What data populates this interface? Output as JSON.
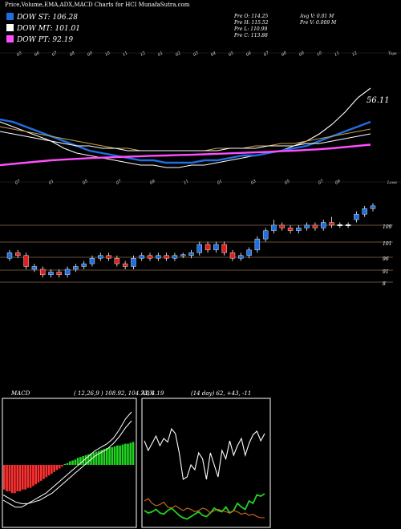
{
  "header": {
    "title": "Price,Volume,EMA,ADX,MACD Charts for HCI MunafaSutra.com",
    "stats": {
      "col1": [
        "Pre O: 114.25",
        "Pre H: 115.52",
        "Pre L: 110.99",
        "Pre C: 113.88"
      ],
      "col2": [
        "Avg V: 0.01 M",
        "Pre V: 0.009 M"
      ]
    }
  },
  "legend": [
    {
      "label": "DOW ST: 106.28",
      "color": "#1f6fe0"
    },
    {
      "label": "DOW MT: 101.01",
      "color": "#ffffff"
    },
    {
      "label": "DOW PT: 92.19",
      "color": "#ff4dff"
    }
  ],
  "chart_data": [
    {
      "type": "line",
      "panel": "ema",
      "value_label": "56.11",
      "top_label": "Tops",
      "bottom_label": "Lows",
      "top_ticks": [
        "05",
        "06",
        "07",
        "08",
        "09",
        "10",
        "11",
        "12",
        "01",
        "02",
        "03",
        "04",
        "05",
        "06",
        "07",
        "08",
        "09",
        "10",
        "11",
        "12"
      ],
      "bottom_ticks": [
        "07",
        "",
        "01",
        "",
        "05",
        "",
        "07",
        "",
        "09",
        "",
        "11",
        "",
        "01",
        "",
        "03",
        "",
        "05",
        "",
        "07",
        "09"
      ],
      "series": [
        {
          "color": "#ffffff",
          "values": [
            106,
            104,
            102,
            100,
            98,
            95,
            93,
            92,
            91,
            90,
            89,
            88,
            88,
            87,
            87,
            88,
            88,
            89,
            90,
            91,
            92,
            93,
            94,
            96,
            98,
            101,
            105,
            110,
            116,
            120
          ]
        },
        {
          "color": "#1f6fe0",
          "values": [
            107,
            106,
            104,
            102,
            100,
            98,
            96,
            94,
            93,
            92,
            91,
            90,
            90,
            89,
            89,
            89,
            90,
            90,
            91,
            92,
            92,
            93,
            94,
            95,
            96,
            98,
            100,
            102,
            104,
            106
          ]
        },
        {
          "color": "#c8a050",
          "values": [
            104,
            103,
            102,
            101,
            100,
            99,
            98,
            97,
            96,
            95,
            95,
            94,
            94,
            94,
            94,
            94,
            94,
            95,
            95,
            95,
            96,
            96,
            97,
            97,
            98,
            99,
            100,
            101,
            102,
            103
          ]
        },
        {
          "color": "#ffffff",
          "values": [
            102,
            101,
            100,
            99,
            98,
            97,
            96,
            96,
            95,
            95,
            94,
            94,
            94,
            94,
            94,
            94,
            94,
            94,
            95,
            95,
            95,
            96,
            96,
            96,
            97,
            97,
            98,
            99,
            100,
            101
          ]
        },
        {
          "color": "#ff4dff",
          "values": [
            88,
            88.5,
            89,
            89.5,
            90,
            90.3,
            90.6,
            90.9,
            91.1,
            91.3,
            91.5,
            91.7,
            91.9,
            92,
            92.2,
            92.3,
            92.5,
            92.7,
            92.9,
            93.1,
            93.3,
            93.5,
            93.8,
            94,
            94.3,
            94.6,
            95,
            95.5,
            96,
            96.5
          ]
        }
      ]
    },
    {
      "type": "candlestick",
      "panel": "price",
      "levels": [
        "109",
        "101",
        "96",
        "91",
        "8"
      ],
      "candles": [
        {
          "o": 96,
          "c": 98,
          "h": 99,
          "l": 95,
          "color": "blue"
        },
        {
          "o": 98,
          "c": 97,
          "h": 99,
          "l": 96,
          "color": "red"
        },
        {
          "o": 97,
          "c": 93,
          "h": 98,
          "l": 92,
          "color": "red"
        },
        {
          "o": 93,
          "c": 92,
          "h": 94,
          "l": 91,
          "color": "blue"
        },
        {
          "o": 92,
          "c": 90,
          "h": 93,
          "l": 89,
          "color": "red"
        },
        {
          "o": 90,
          "c": 91,
          "h": 92,
          "l": 89,
          "color": "blue"
        },
        {
          "o": 91,
          "c": 90,
          "h": 92,
          "l": 89,
          "color": "red"
        },
        {
          "o": 90,
          "c": 92,
          "h": 93,
          "l": 89,
          "color": "blue"
        },
        {
          "o": 92,
          "c": 93,
          "h": 94,
          "l": 91,
          "color": "blue"
        },
        {
          "o": 93,
          "c": 94,
          "h": 95,
          "l": 92,
          "color": "blue"
        },
        {
          "o": 94,
          "c": 96,
          "h": 97,
          "l": 93,
          "color": "blue"
        },
        {
          "o": 96,
          "c": 97,
          "h": 98,
          "l": 95,
          "color": "blue"
        },
        {
          "o": 97,
          "c": 96,
          "h": 98,
          "l": 95,
          "color": "red"
        },
        {
          "o": 96,
          "c": 94,
          "h": 97,
          "l": 93,
          "color": "red"
        },
        {
          "o": 94,
          "c": 93,
          "h": 95,
          "l": 92,
          "color": "red"
        },
        {
          "o": 93,
          "c": 96,
          "h": 97,
          "l": 92,
          "color": "blue"
        },
        {
          "o": 96,
          "c": 97,
          "h": 98,
          "l": 95,
          "color": "blue"
        },
        {
          "o": 97,
          "c": 96,
          "h": 98,
          "l": 95,
          "color": "red"
        },
        {
          "o": 96,
          "c": 97,
          "h": 98,
          "l": 95,
          "color": "blue"
        },
        {
          "o": 97,
          "c": 96,
          "h": 98,
          "l": 95,
          "color": "red"
        },
        {
          "o": 96,
          "c": 97,
          "h": 98,
          "l": 95,
          "color": "blue"
        },
        {
          "o": 97,
          "c": 97.3,
          "h": 98,
          "l": 96,
          "color": "blue"
        },
        {
          "o": 97,
          "c": 98,
          "h": 99,
          "l": 96,
          "color": "blue"
        },
        {
          "o": 98,
          "c": 101,
          "h": 102,
          "l": 97,
          "color": "blue"
        },
        {
          "o": 101,
          "c": 99,
          "h": 102,
          "l": 98,
          "color": "red"
        },
        {
          "o": 99,
          "c": 101,
          "h": 102,
          "l": 98,
          "color": "blue"
        },
        {
          "o": 101,
          "c": 98,
          "h": 102,
          "l": 97,
          "color": "red"
        },
        {
          "o": 98,
          "c": 96,
          "h": 99,
          "l": 95,
          "color": "red"
        },
        {
          "o": 96,
          "c": 97,
          "h": 98,
          "l": 95,
          "color": "blue"
        },
        {
          "o": 97,
          "c": 99,
          "h": 100,
          "l": 96,
          "color": "blue"
        },
        {
          "o": 99,
          "c": 103,
          "h": 104,
          "l": 98,
          "color": "blue"
        },
        {
          "o": 103,
          "c": 106,
          "h": 107,
          "l": 102,
          "color": "blue"
        },
        {
          "o": 106,
          "c": 108,
          "h": 110,
          "l": 105,
          "color": "blue"
        },
        {
          "o": 108,
          "c": 107,
          "h": 109,
          "l": 106,
          "color": "red"
        },
        {
          "o": 107,
          "c": 106,
          "h": 108,
          "l": 105,
          "color": "red"
        },
        {
          "o": 106,
          "c": 107,
          "h": 108,
          "l": 105,
          "color": "blue"
        },
        {
          "o": 107,
          "c": 108,
          "h": 109,
          "l": 106,
          "color": "blue"
        },
        {
          "o": 108,
          "c": 107,
          "h": 109,
          "l": 106,
          "color": "red"
        },
        {
          "o": 107,
          "c": 109,
          "h": 110,
          "l": 106,
          "color": "blue"
        },
        {
          "o": 109,
          "c": 108,
          "h": 111,
          "l": 107,
          "color": "red"
        },
        {
          "o": 108,
          "c": 108.2,
          "h": 109,
          "l": 107,
          "color": "white"
        },
        {
          "o": 108,
          "c": 108.2,
          "h": 109,
          "l": 107,
          "color": "white"
        },
        {
          "o": 110,
          "c": 112,
          "h": 113,
          "l": 109,
          "color": "blue"
        },
        {
          "o": 112,
          "c": 114,
          "h": 115,
          "l": 111,
          "color": "blue"
        },
        {
          "o": 114,
          "c": 115,
          "h": 116,
          "l": 113,
          "color": "blue"
        }
      ]
    },
    {
      "type": "bar",
      "panel": "macd",
      "title": "MACD",
      "params": "( 12,26,9 ) 108.92, 104.73, 4.19",
      "histogram": [
        -14,
        -15,
        -15,
        -16,
        -16,
        -15,
        -15,
        -14,
        -14,
        -13,
        -13,
        -12,
        -11,
        -10,
        -9,
        -8,
        -7,
        -6,
        -5,
        -4,
        -3,
        -2,
        -1,
        0.5,
        1,
        2,
        2.5,
        3,
        4,
        4.5,
        5,
        5.5,
        6,
        6.5,
        7,
        7.5,
        8,
        8.5,
        9,
        9.5,
        10,
        10,
        10.5,
        11,
        11,
        11.5,
        12,
        12,
        12.5,
        13
      ],
      "lines": [
        {
          "color": "#ffffff",
          "values": [
            -20,
            -22,
            -24,
            -24,
            -22,
            -20,
            -18,
            -16,
            -13,
            -10,
            -7,
            -4,
            -1,
            2,
            5,
            8,
            10,
            12,
            15,
            20,
            26,
            30
          ]
        },
        {
          "color": "#ffffff",
          "values": [
            -17,
            -19,
            -21,
            -22,
            -22,
            -21,
            -20,
            -18,
            -16,
            -13,
            -10,
            -7,
            -4,
            -1,
            2,
            5,
            7,
            9,
            12,
            16,
            21,
            25
          ]
        }
      ]
    },
    {
      "type": "line",
      "panel": "adx",
      "title": "ADX",
      "params": "(14 day) 62, +43, -11",
      "series": [
        {
          "color": "#ffffff",
          "values": [
            70,
            62,
            68,
            74,
            66,
            72,
            69,
            80,
            76,
            60,
            38,
            40,
            50,
            46,
            60,
            55,
            38,
            60,
            50,
            40,
            62,
            55,
            70,
            58,
            66,
            72,
            58,
            68,
            75,
            78,
            70,
            76
          ]
        },
        {
          "color": "#21d421",
          "values": [
            12,
            10,
            11,
            13,
            10,
            9,
            12,
            14,
            11,
            8,
            6,
            5,
            7,
            9,
            11,
            8,
            7,
            10,
            14,
            12,
            11,
            15,
            10,
            12,
            18,
            15,
            13,
            20,
            18,
            25,
            24,
            26
          ]
        },
        {
          "color": "#d2691e",
          "values": [
            20,
            22,
            18,
            16,
            17,
            19,
            15,
            14,
            16,
            14,
            12,
            14,
            13,
            11,
            12,
            14,
            13,
            10,
            12,
            13,
            12,
            11,
            10,
            12,
            11,
            9,
            10,
            8,
            9,
            7,
            6,
            6
          ]
        }
      ]
    }
  ]
}
